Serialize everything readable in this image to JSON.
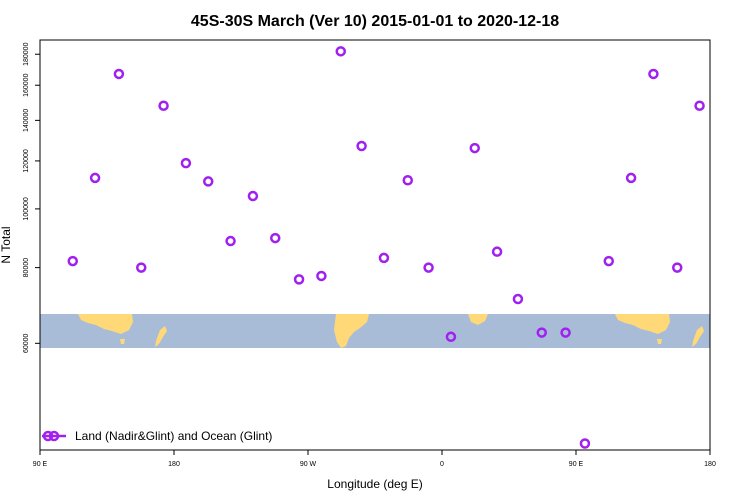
{
  "chart_data": {
    "type": "scatter",
    "title": "45S-30S March (Ver 10)   2015-01-01 to 2020-12-18",
    "xlabel": "Longitude (deg E)",
    "ylabel": "N Total",
    "x_ticks": [
      {
        "value": 90,
        "label": "90 E"
      },
      {
        "value": 180,
        "label": "180"
      },
      {
        "value": 270,
        "label": "90 W"
      },
      {
        "value": 360,
        "label": "0"
      },
      {
        "value": 450,
        "label": "90 E"
      },
      {
        "value": 540,
        "label": "180"
      }
    ],
    "y_ticks": [
      60000,
      80000,
      100000,
      120000,
      140000,
      160000,
      180000
    ],
    "y_scale": "log",
    "xlim": [
      90,
      540
    ],
    "ylim": [
      40000,
      190000
    ],
    "grid": false,
    "legend_position": "bottom-left",
    "colors": {
      "series": "#a020f0",
      "ocean": "#a8bcd8",
      "land": "#ffd977"
    },
    "series": [
      {
        "name": "Land (Nadir&Glint) and Ocean (Glint)",
        "points": [
          {
            "x": 112,
            "y": 82000
          },
          {
            "x": 127,
            "y": 112500
          },
          {
            "x": 143,
            "y": 167000
          },
          {
            "x": 158,
            "y": 80000
          },
          {
            "x": 173,
            "y": 148000
          },
          {
            "x": 188,
            "y": 119000
          },
          {
            "x": 203,
            "y": 111000
          },
          {
            "x": 218,
            "y": 88500
          },
          {
            "x": 233,
            "y": 105000
          },
          {
            "x": 248,
            "y": 89500
          },
          {
            "x": 264,
            "y": 76500
          },
          {
            "x": 279,
            "y": 77500
          },
          {
            "x": 292,
            "y": 182000
          },
          {
            "x": 306,
            "y": 127000
          },
          {
            "x": 321,
            "y": 83000
          },
          {
            "x": 337,
            "y": 111500
          },
          {
            "x": 351,
            "y": 80000
          },
          {
            "x": 366,
            "y": 61500
          },
          {
            "x": 382,
            "y": 126000
          },
          {
            "x": 397,
            "y": 85000
          },
          {
            "x": 411,
            "y": 71000
          },
          {
            "x": 427,
            "y": 62500
          },
          {
            "x": 443,
            "y": 62500
          },
          {
            "x": 456,
            "y": 41000
          },
          {
            "x": 472,
            "y": 82000
          },
          {
            "x": 487,
            "y": 112500
          },
          {
            "x": 502,
            "y": 167000
          },
          {
            "x": 518,
            "y": 80000
          },
          {
            "x": 533,
            "y": 148000
          }
        ]
      }
    ]
  }
}
